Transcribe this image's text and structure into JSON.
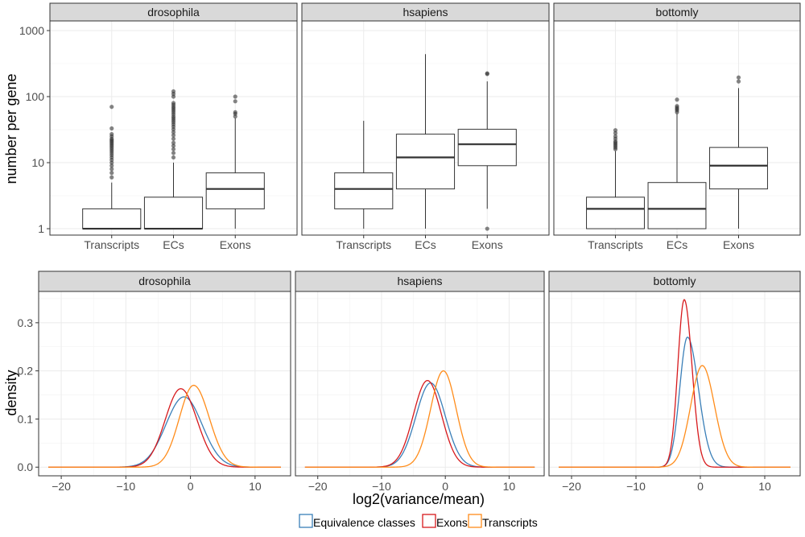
{
  "chart_data": [
    {
      "type": "boxplot",
      "facets": [
        "drosophila",
        "hsapiens",
        "bottomly"
      ],
      "categories": [
        "Transcripts",
        "ECs",
        "Exons"
      ],
      "ylabel": "number per gene",
      "xlabel": "",
      "y_scale": "log10",
      "ylim": [
        0.8,
        1400
      ],
      "y_ticks": [
        1,
        10,
        100,
        1000
      ],
      "y_tick_labels": [
        "1",
        "10",
        "100",
        "1000"
      ],
      "grid": true,
      "boxes": {
        "drosophila": [
          {
            "category": "Transcripts",
            "min": 1,
            "q1": 1,
            "median": 1,
            "q3": 2,
            "max": 5,
            "outliers": [
              6,
              7,
              8,
              9,
              10,
              11,
              12,
              13,
              14,
              15,
              16,
              17,
              18,
              19,
              20,
              21,
              22,
              23,
              25,
              27,
              33,
              70
            ]
          },
          {
            "category": "ECs",
            "min": 1,
            "q1": 1,
            "median": 1,
            "q3": 3,
            "max": 10,
            "outliers": [
              12,
              14,
              16,
              18,
              20,
              23,
              26,
              29,
              32,
              35,
              38,
              41,
              44,
              47,
              50,
              54,
              58,
              62,
              66,
              70,
              75,
              80,
              100,
              110,
              120
            ]
          },
          {
            "category": "Exons",
            "min": 1,
            "q1": 2,
            "median": 4,
            "q3": 7,
            "max": 47,
            "outliers": [
              50,
              55,
              58,
              85,
              100
            ]
          }
        ],
        "hsapiens": [
          {
            "category": "Transcripts",
            "min": 1,
            "q1": 2,
            "median": 4,
            "q3": 7,
            "max": 43,
            "outliers": []
          },
          {
            "category": "ECs",
            "min": 1,
            "q1": 4,
            "median": 12,
            "q3": 27,
            "max": 440,
            "outliers": []
          },
          {
            "category": "Exons",
            "min": 2,
            "q1": 9,
            "median": 19,
            "q3": 32,
            "max": 170,
            "outliers": [
              1,
              220,
              225
            ]
          }
        ],
        "bottomly": [
          {
            "category": "Transcripts",
            "min": 1,
            "q1": 1,
            "median": 2,
            "q3": 3,
            "max": 15,
            "outliers": [
              16,
              17,
              18,
              19,
              20,
              21,
              23,
              25,
              28,
              31
            ]
          },
          {
            "category": "ECs",
            "min": 1,
            "q1": 1,
            "median": 2,
            "q3": 5,
            "max": 55,
            "outliers": [
              58,
              62,
              65,
              68,
              72,
              90
            ]
          },
          {
            "category": "Exons",
            "min": 1,
            "q1": 4,
            "median": 9,
            "q3": 17,
            "max": 135,
            "outliers": [
              170,
              195
            ]
          }
        ]
      }
    },
    {
      "type": "line",
      "subtype": "density",
      "facets": [
        "drosophila",
        "hsapiens",
        "bottomly"
      ],
      "xlabel": "log2(variance/mean)",
      "ylabel": "density",
      "xlim": [
        -23.5,
        15.5
      ],
      "ylim": [
        -0.018,
        0.365
      ],
      "x_ticks": [
        -20,
        -10,
        0,
        10
      ],
      "x_tick_labels": [
        "−20",
        "−10",
        "0",
        "10"
      ],
      "y_ticks": [
        0,
        0.1,
        0.2,
        0.3
      ],
      "y_tick_labels": [
        "0.0",
        "0.1",
        "0.2",
        "0.3"
      ],
      "x_range": [
        -22,
        14
      ],
      "grid": true,
      "legend_position": "bottom",
      "series_names": [
        "Equivalence classes",
        "Exons",
        "Transcripts"
      ],
      "series_colors": [
        "#3a7fb8",
        "#d7191c",
        "#ff8c1a"
      ],
      "curves": {
        "drosophila": [
          {
            "name": "Equivalence classes",
            "peak_x": -1.0,
            "peak_y": 0.146,
            "sd_left": 2.8,
            "sd_right": 2.8
          },
          {
            "name": "Exons",
            "peak_x": -1.5,
            "peak_y": 0.163,
            "sd_left": 2.4,
            "sd_right": 2.5
          },
          {
            "name": "Transcripts",
            "peak_x": 0.5,
            "peak_y": 0.17,
            "sd_left": 2.2,
            "sd_right": 2.4
          }
        ],
        "hsapiens": [
          {
            "name": "Equivalence classes",
            "peak_x": -2.3,
            "peak_y": 0.175,
            "sd_left": 2.3,
            "sd_right": 2.3
          },
          {
            "name": "Exons",
            "peak_x": -2.8,
            "peak_y": 0.18,
            "sd_left": 2.2,
            "sd_right": 2.2
          },
          {
            "name": "Transcripts",
            "peak_x": -0.3,
            "peak_y": 0.2,
            "sd_left": 2.0,
            "sd_right": 2.0
          }
        ],
        "bottomly": [
          {
            "name": "Equivalence classes",
            "peak_x": -2.0,
            "peak_y": 0.27,
            "sd_left": 1.2,
            "sd_right": 1.7
          },
          {
            "name": "Exons",
            "peak_x": -2.5,
            "peak_y": 0.348,
            "sd_left": 1.0,
            "sd_right": 1.2
          },
          {
            "name": "Transcripts",
            "peak_x": 0.3,
            "peak_y": 0.211,
            "sd_left": 1.8,
            "sd_right": 1.9
          }
        ]
      }
    }
  ]
}
